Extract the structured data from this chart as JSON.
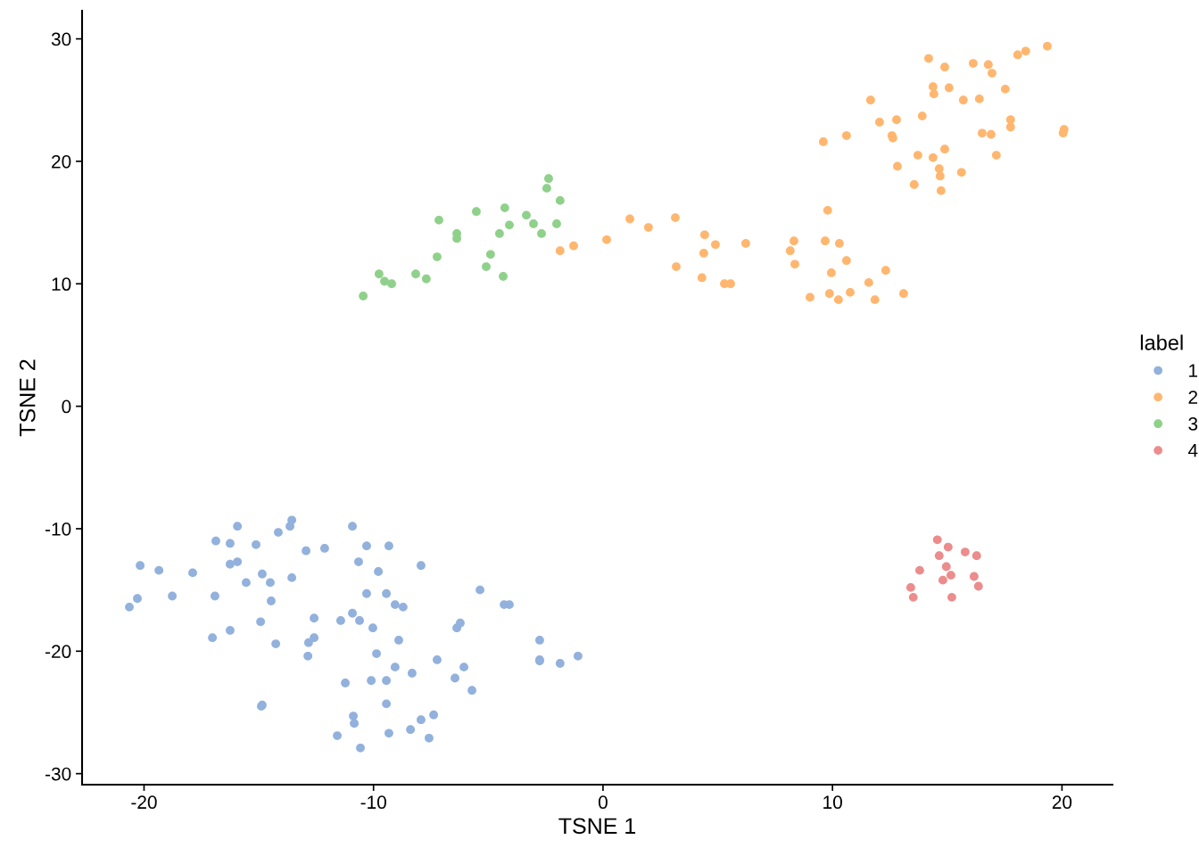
{
  "chart_data": {
    "type": "scatter",
    "xlabel": "TSNE 1",
    "ylabel": "TSNE 2",
    "legend_title": "label",
    "legend": "right",
    "grid": false,
    "marker": "circle",
    "xlim": [
      -22.7,
      22.2
    ],
    "ylim": [
      -30.9,
      32.3
    ],
    "xticks": [
      -20,
      -10,
      0,
      10,
      20
    ],
    "yticks": [
      -30,
      -20,
      -10,
      0,
      10,
      20,
      30
    ],
    "series": [
      {
        "name": "1",
        "color": "#92b1dc",
        "x": [
          -13.56,
          -13.64,
          -15.93,
          -10.92,
          -14.15,
          -16.87,
          -16.25,
          -15.12,
          -9.33,
          -10.3,
          -12.13,
          -12.94,
          -20.17,
          -19.35,
          -17.88,
          -16.25,
          -15.93,
          -10.65,
          -7.93,
          -9.79,
          -14.85,
          -13.56,
          -15.55,
          -14.5,
          -18.77,
          -16.91,
          -10.3,
          -9.44,
          -5.36,
          -14.46,
          -9.06,
          -8.71,
          -4.31,
          -4.08,
          -20.64,
          -20.29,
          -12.59,
          -11.43,
          -10.92,
          -10.61,
          -14.92,
          -6.22,
          -6.37,
          -16.25,
          -10.03,
          -17.02,
          -12.59,
          -12.83,
          -14.26,
          -8.9,
          -2.76,
          -12.86,
          -9.87,
          -7.23,
          -2.76,
          -2.76,
          -1.09,
          -1.87,
          -9.06,
          -6.06,
          -8.32,
          -6.45,
          -11.23,
          -10.1,
          -9.44,
          -5.71,
          -14.85,
          -14.89,
          -9.44,
          -7.38,
          -10.88,
          -7.93,
          -10.84,
          -8.39,
          -9.33,
          -7.58,
          -11.58,
          -10.57
        ],
        "values": [
          -9.3,
          -9.8,
          -9.8,
          -9.8,
          -10.3,
          -11.0,
          -11.2,
          -11.3,
          -11.4,
          -11.4,
          -11.6,
          -11.8,
          -13.0,
          -13.4,
          -13.6,
          -12.9,
          -12.7,
          -12.7,
          -13.0,
          -13.5,
          -13.7,
          -14.0,
          -14.4,
          -14.4,
          -15.5,
          -15.5,
          -15.3,
          -15.3,
          -15.0,
          -15.9,
          -16.2,
          -16.4,
          -16.2,
          -16.2,
          -16.4,
          -15.7,
          -17.3,
          -17.5,
          -16.9,
          -17.5,
          -17.6,
          -17.7,
          -18.1,
          -18.3,
          -18.1,
          -18.9,
          -18.9,
          -19.3,
          -19.4,
          -19.1,
          -19.1,
          -20.4,
          -20.2,
          -20.7,
          -20.7,
          -20.8,
          -20.4,
          -21.0,
          -21.3,
          -21.3,
          -21.8,
          -22.2,
          -22.6,
          -22.4,
          -22.4,
          -23.2,
          -24.4,
          -24.5,
          -24.3,
          -25.2,
          -25.3,
          -25.6,
          -25.9,
          -26.4,
          -26.7,
          -27.1,
          -26.9,
          -27.9
        ]
      },
      {
        "name": "2",
        "color": "#ffb66f",
        "x": [
          19.36,
          18.42,
          18.07,
          14.19,
          16.13,
          14.89,
          16.79,
          16.95,
          14.38,
          14.42,
          15.08,
          17.53,
          11.66,
          16.4,
          15.7,
          17.76,
          13.91,
          12.05,
          12.79,
          17.76,
          16.52,
          16.91,
          12.59,
          12.63,
          10.61,
          9.6,
          14.89,
          13.72,
          14.38,
          17.14,
          12.83,
          14.65,
          15.62,
          14.69,
          13.56,
          14.73,
          20.09,
          20.05,
          9.79,
          1.17,
          3.15,
          1.98,
          4.43,
          -1.28,
          0.16,
          -1.87,
          6.22,
          4.9,
          8.32,
          9.68,
          10.3,
          8.16,
          4.39,
          8.36,
          10.61,
          3.19,
          12.32,
          9.95,
          4.31,
          5.29,
          5.56,
          11.58,
          13.1,
          9.87,
          10.77,
          9.02,
          10.26,
          11.85
        ],
        "values": [
          29.4,
          29.0,
          28.7,
          28.4,
          28.0,
          27.7,
          27.9,
          27.2,
          26.1,
          25.5,
          26.0,
          25.9,
          25.0,
          25.1,
          25.0,
          23.4,
          23.7,
          23.2,
          23.4,
          22.8,
          22.3,
          22.2,
          22.1,
          21.9,
          22.1,
          21.6,
          21.0,
          20.5,
          20.3,
          20.5,
          19.6,
          19.4,
          19.1,
          18.8,
          18.1,
          17.6,
          22.6,
          22.3,
          16.0,
          15.3,
          15.4,
          14.6,
          14.0,
          13.1,
          13.6,
          12.7,
          13.3,
          13.2,
          13.5,
          13.5,
          13.3,
          12.7,
          12.5,
          11.6,
          11.9,
          11.4,
          11.1,
          10.9,
          10.5,
          10.0,
          10.0,
          10.1,
          9.2,
          9.2,
          9.3,
          8.9,
          8.7,
          8.7
        ]
      },
      {
        "name": "3",
        "color": "#8fd18a",
        "x": [
          -2.37,
          -2.45,
          -1.87,
          -5.52,
          -4.28,
          -3.34,
          -3.03,
          -4.08,
          -2.02,
          -7.15,
          -6.37,
          -2.68,
          -6.37,
          -4.51,
          -4.9,
          -7.23,
          -5.09,
          -4.35,
          -9.76,
          -8.16,
          -7.7,
          -9.52,
          -9.21,
          -10.45
        ],
        "values": [
          18.6,
          17.8,
          16.8,
          15.9,
          16.2,
          15.6,
          14.9,
          14.8,
          14.9,
          15.2,
          14.1,
          14.1,
          13.7,
          14.1,
          12.4,
          12.2,
          11.4,
          10.6,
          10.8,
          10.8,
          10.4,
          10.2,
          10.0,
          9.0
        ]
      },
      {
        "name": "4",
        "color": "#ec8c8c",
        "x": [
          14.57,
          15.04,
          15.78,
          16.28,
          14.65,
          13.8,
          14.96,
          15.16,
          16.17,
          14.81,
          13.41,
          16.36,
          13.52,
          15.2
        ],
        "values": [
          -10.9,
          -11.5,
          -11.9,
          -12.2,
          -12.2,
          -13.4,
          -13.1,
          -13.8,
          -13.9,
          -14.2,
          -14.8,
          -14.7,
          -15.6,
          -15.6
        ]
      }
    ]
  }
}
